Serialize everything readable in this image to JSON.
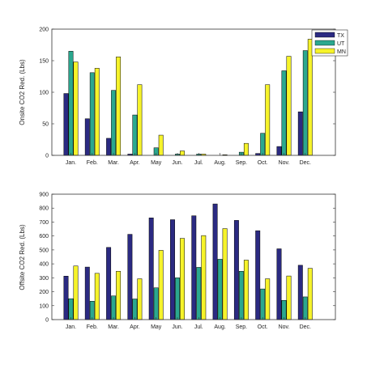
{
  "colors": {
    "TX": "#2b2a82",
    "UT": "#2ba88f",
    "MN": "#f6f32a",
    "axis": "#333333",
    "bar_edge": "#000000"
  },
  "chart_data": [
    {
      "type": "bar",
      "title": "",
      "xlabel": "",
      "ylabel": "Onsite CO2 Red. (Lbs)",
      "ylim": [
        0,
        200
      ],
      "yticks": [
        0,
        50,
        100,
        150,
        200
      ],
      "grid": false,
      "legend_position": "top-right",
      "categories": [
        "Jan.",
        "Feb.",
        "Mar.",
        "Apr.",
        "May",
        "Jun.",
        "Jul.",
        "Aug.",
        "Sep.",
        "Oct.",
        "Nov.",
        "Dec."
      ],
      "series": [
        {
          "name": "TX",
          "values": [
            98,
            58,
            27,
            2,
            0,
            0,
            0,
            0,
            0,
            3,
            14,
            69
          ]
        },
        {
          "name": "UT",
          "values": [
            165,
            131,
            103,
            64,
            12,
            2,
            2,
            0,
            5,
            35,
            134,
            166
          ]
        },
        {
          "name": "MN",
          "values": [
            148,
            138,
            156,
            112,
            32,
            7,
            2,
            1,
            19,
            112,
            157,
            184
          ]
        }
      ]
    },
    {
      "type": "bar",
      "title": "",
      "xlabel": "",
      "ylabel": "Offsite CO2 Red. (Lbs)",
      "ylim": [
        0,
        900
      ],
      "yticks": [
        0,
        100,
        200,
        300,
        400,
        500,
        600,
        700,
        800,
        900
      ],
      "grid": false,
      "legend_position": "",
      "categories": [
        "Jan.",
        "Feb.",
        "Mar.",
        "Apr.",
        "May",
        "Jun.",
        "Jul.",
        "Aug.",
        "Sep.",
        "Oct.",
        "Nov.",
        "Dec."
      ],
      "series": [
        {
          "name": "TX",
          "values": [
            312,
            377,
            518,
            612,
            730,
            717,
            745,
            830,
            712,
            638,
            508,
            390
          ]
        },
        {
          "name": "UT",
          "values": [
            150,
            132,
            170,
            148,
            228,
            300,
            375,
            433,
            347,
            220,
            138,
            163
          ]
        },
        {
          "name": "MN",
          "values": [
            385,
            332,
            347,
            293,
            497,
            583,
            603,
            653,
            427,
            293,
            313,
            368
          ]
        }
      ]
    }
  ]
}
